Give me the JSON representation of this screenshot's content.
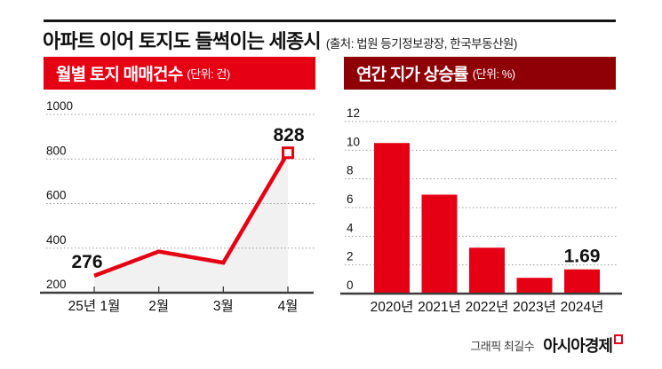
{
  "title": {
    "main": "아파트 이어 토지도 들썩이는 세종시",
    "source": "(출처: 법원 등기정보광장, 한국부동산원)"
  },
  "colors": {
    "accent_red": "#e60014",
    "dark_red": "#8e0005",
    "grid": "#9a9a9a",
    "axis": "#3c3c3c",
    "area_fill": "#f1f1f1",
    "text": "#111111"
  },
  "chart_data": [
    {
      "type": "line",
      "title": "월별 토지 매매건수",
      "unit_label": "(단위: 건)",
      "unit": "건",
      "categories": [
        "25년 1월",
        "2월",
        "3월",
        "4월"
      ],
      "values": [
        276,
        385,
        335,
        828
      ],
      "point_labels": [
        {
          "index": 0,
          "text": "276"
        },
        {
          "index": 3,
          "text": "828"
        }
      ],
      "ylim": [
        200,
        1000
      ],
      "yticks": [
        200,
        400,
        600,
        800,
        1000
      ],
      "grid": "dotted-horizontal",
      "area_under_line": true,
      "end_marker": "open-square"
    },
    {
      "type": "bar",
      "title": "연간 지가 상승률",
      "unit_label": "(단위: %)",
      "unit": "%",
      "categories": [
        "2020년",
        "2021년",
        "2022년",
        "2023년",
        "2024년"
      ],
      "values": [
        10.5,
        6.9,
        3.2,
        1.1,
        1.69
      ],
      "point_labels": [
        {
          "index": 4,
          "text": "1.69"
        }
      ],
      "ylim": [
        0,
        12
      ],
      "yticks": [
        0,
        2,
        4,
        6,
        8,
        10,
        12
      ],
      "grid": "dotted-horizontal"
    }
  ],
  "footer": {
    "credit": "그래픽 최길수",
    "brand": "아시아경제"
  }
}
